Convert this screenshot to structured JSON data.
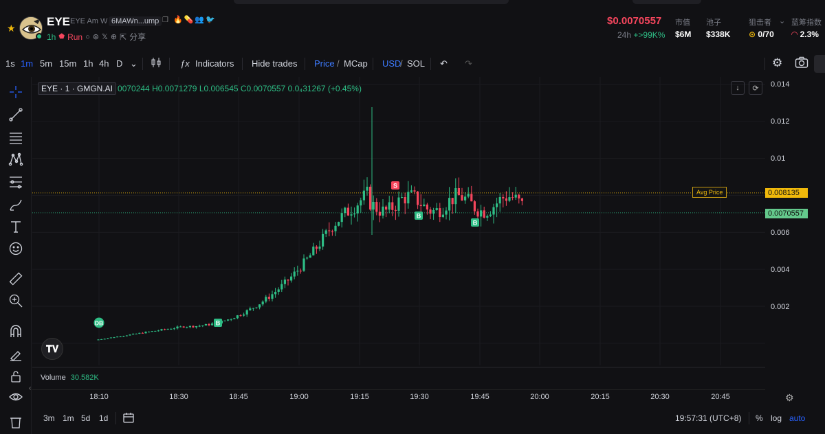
{
  "token": {
    "symbol": "EYE",
    "name": "EYE Am W",
    "address": "6MAWn...ump",
    "age": "1h",
    "status": "Run",
    "share_label": "分享",
    "verified_icons": [
      "fire-icon",
      "pill-icon",
      "people-icon",
      "bird-icon"
    ]
  },
  "market": {
    "price": "$0.0070557",
    "change_label": "24h",
    "change_value": "+>99K%",
    "market_cap_label": "市值",
    "market_cap": "$6M",
    "pool_label": "池子",
    "pool": "$338K",
    "sniper_label": "狙击者",
    "sniper_value": "0/70",
    "bluechip_label": "蓝筹指数",
    "bluechip_value": "2.3%"
  },
  "toolbar": {
    "intervals": [
      "1s",
      "1m",
      "5m",
      "15m",
      "1h",
      "4h",
      "D"
    ],
    "active_interval": "1m",
    "indicators_label": "Indicators",
    "hide_trades_label": "Hide trades",
    "price_label": "Price",
    "mcap_label": "MCap",
    "usd_label": "USD",
    "sol_label": "SOL"
  },
  "legend": {
    "title": "EYE · 1 · GMGN.AI",
    "open": "0070244",
    "high": "H0.0071279",
    "low": "L0.006545",
    "close": "C0.0070557",
    "change": "0.0₄31267 (+0.45%)"
  },
  "volume": {
    "label": "Volume",
    "value": "30.582K"
  },
  "axis": {
    "y_ticks": [
      "0.014",
      "0.012",
      "0.01",
      "0.006",
      "0.004",
      "0.002"
    ],
    "x_ticks": [
      "18:10",
      "18:30",
      "18:45",
      "19:00",
      "19:15",
      "19:30",
      "19:45",
      "20:00",
      "20:15",
      "20:30",
      "20:45"
    ],
    "avg_price_label": "Avg Price",
    "avg_price_value": "0.008135",
    "current_price_value": "0.0070557"
  },
  "markers": {
    "db": "DB",
    "buy": "B",
    "sell": "S"
  },
  "bottombar": {
    "ranges": [
      "3m",
      "1m",
      "5d",
      "1d"
    ],
    "time": "19:57:31 (UTC+8)",
    "percent_label": "%",
    "log_label": "log",
    "auto_label": "auto"
  },
  "colors": {
    "up": "#2ebd85",
    "down": "#f6465d",
    "accent": "#2962ff",
    "gold": "#f0b90b"
  }
}
